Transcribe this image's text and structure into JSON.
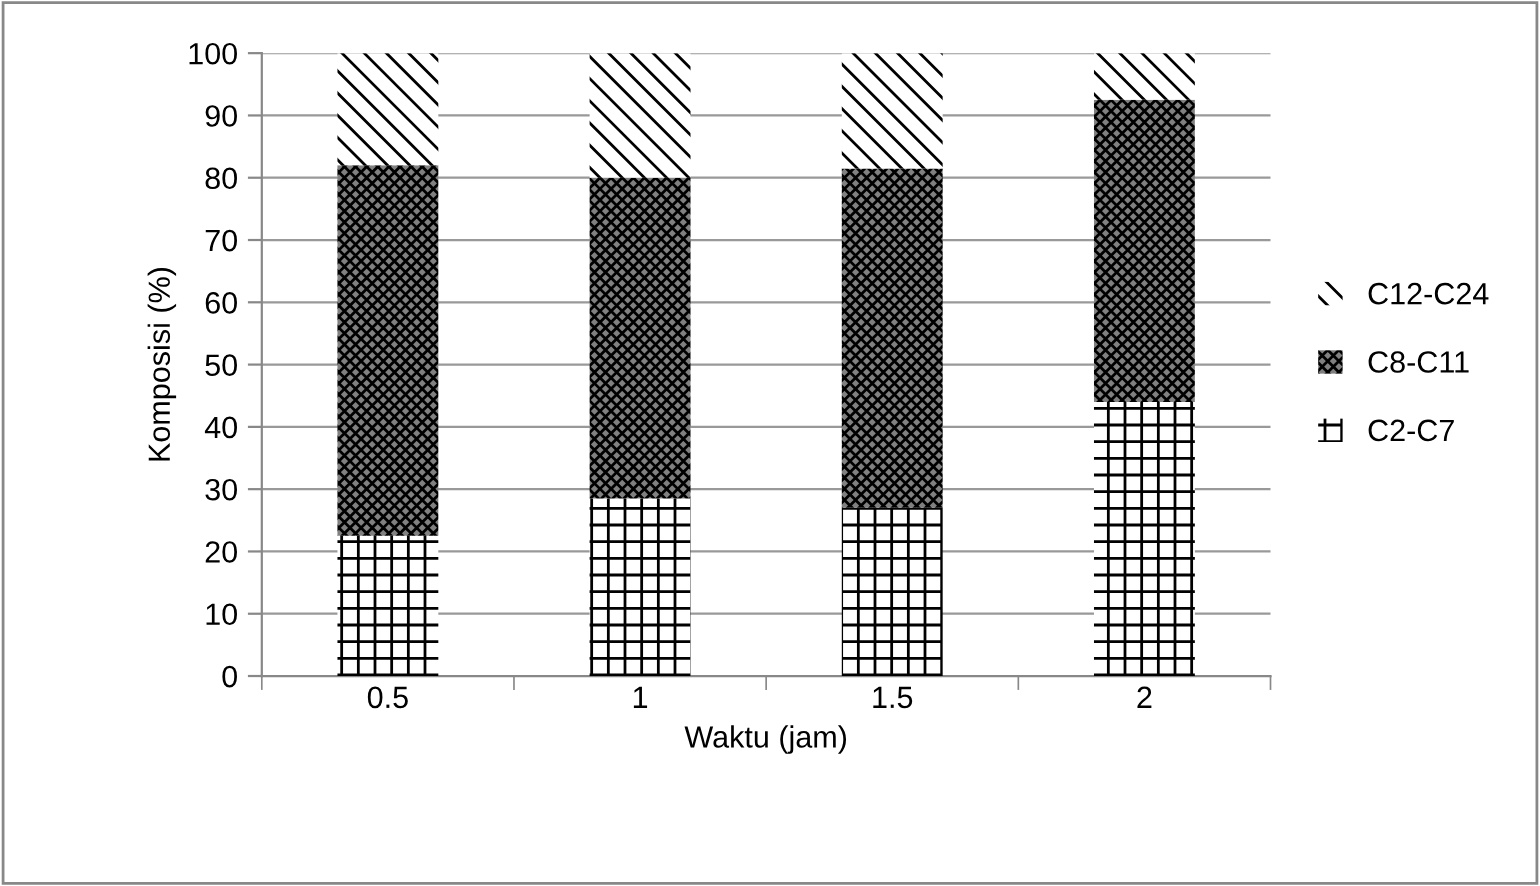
{
  "chart_data": {
    "type": "bar",
    "stacked": true,
    "xlabel": "Waktu (jam)",
    "ylabel": "Komposisi (%)",
    "categories": [
      "0.5",
      "1",
      "1.5",
      "2"
    ],
    "series": [
      {
        "name": "C2-C7",
        "color": "#ffffff",
        "values": [
          22.5,
          28.5,
          27,
          44
        ]
      },
      {
        "name": "C8-C11",
        "color": "#808080",
        "values": [
          59.5,
          51.5,
          54.5,
          48.5
        ]
      },
      {
        "name": "C12-C24",
        "color": "#ffffff",
        "values": [
          18,
          20,
          18.5,
          7.5
        ]
      }
    ],
    "ylim": [
      0,
      100
    ],
    "yticks": [
      0,
      10,
      20,
      30,
      40,
      50,
      60,
      70,
      80,
      90,
      100
    ],
    "grid": "y",
    "legend": "right"
  }
}
